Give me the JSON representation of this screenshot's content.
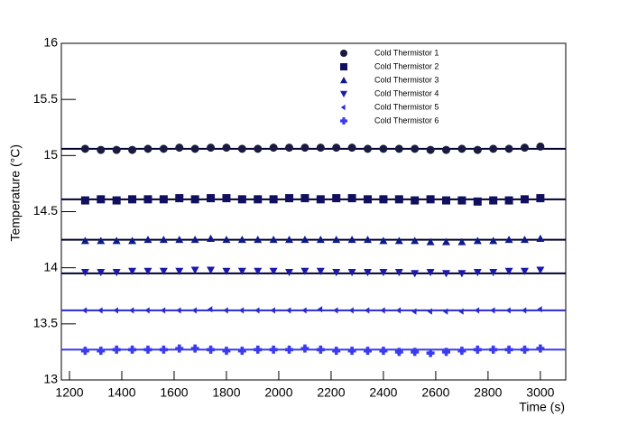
{
  "chart_data": {
    "type": "scatter",
    "x_label": "Time (s)",
    "y_label": "Temperature (°C)",
    "xlim": [
      1169,
      3097
    ],
    "ylim": [
      13,
      16
    ],
    "xticks": [
      1200,
      1400,
      1600,
      1800,
      2000,
      2200,
      2400,
      2600,
      2800,
      3000
    ],
    "yticks": [
      13,
      13.5,
      14,
      14.5,
      15,
      15.5,
      16
    ],
    "x": [
      1260,
      1320,
      1380,
      1440,
      1500,
      1560,
      1620,
      1680,
      1740,
      1800,
      1860,
      1920,
      1980,
      2040,
      2100,
      2160,
      2220,
      2280,
      2340,
      2400,
      2460,
      2520,
      2580,
      2640,
      2700,
      2760,
      2820,
      2880,
      2940,
      3000
    ],
    "series": [
      {
        "name": "Cold Thermistor 1",
        "color": "#1a1a40",
        "marker": "circle",
        "fit": 15.06,
        "values": [
          15.06,
          15.05,
          15.05,
          15.05,
          15.06,
          15.06,
          15.07,
          15.06,
          15.07,
          15.07,
          15.06,
          15.06,
          15.07,
          15.07,
          15.07,
          15.07,
          15.07,
          15.07,
          15.06,
          15.06,
          15.06,
          15.06,
          15.05,
          15.05,
          15.06,
          15.05,
          15.06,
          15.06,
          15.07,
          15.08
        ]
      },
      {
        "name": "Cold Thermistor 2",
        "color": "#101060",
        "marker": "square",
        "fit": 14.61,
        "values": [
          14.6,
          14.61,
          14.6,
          14.61,
          14.61,
          14.61,
          14.62,
          14.61,
          14.62,
          14.62,
          14.61,
          14.61,
          14.61,
          14.62,
          14.62,
          14.61,
          14.62,
          14.62,
          14.61,
          14.61,
          14.61,
          14.6,
          14.61,
          14.6,
          14.6,
          14.59,
          14.6,
          14.6,
          14.61,
          14.62
        ]
      },
      {
        "name": "Cold Thermistor 3",
        "color": "#0c1a8a",
        "marker": "triangle-up",
        "fit": 14.25,
        "values": [
          14.24,
          14.24,
          14.24,
          14.24,
          14.25,
          14.25,
          14.25,
          14.25,
          14.26,
          14.25,
          14.25,
          14.25,
          14.25,
          14.25,
          14.25,
          14.25,
          14.25,
          14.25,
          14.25,
          14.24,
          14.24,
          14.24,
          14.23,
          14.23,
          14.23,
          14.24,
          14.24,
          14.25,
          14.25,
          14.26
        ]
      },
      {
        "name": "Cold Thermistor 4",
        "color": "#1a1aaa",
        "marker": "triangle-down",
        "fit": 13.95,
        "values": [
          13.96,
          13.96,
          13.96,
          13.97,
          13.97,
          13.97,
          13.97,
          13.98,
          13.98,
          13.97,
          13.97,
          13.97,
          13.97,
          13.96,
          13.97,
          13.97,
          13.96,
          13.96,
          13.96,
          13.96,
          13.96,
          13.95,
          13.96,
          13.95,
          13.95,
          13.96,
          13.96,
          13.97,
          13.97,
          13.98
        ]
      },
      {
        "name": "Cold Thermistor 5",
        "color": "#2a2acc",
        "marker": "triangle-left",
        "fit": 13.62,
        "values": [
          13.62,
          13.62,
          13.62,
          13.62,
          13.62,
          13.62,
          13.62,
          13.62,
          13.63,
          13.62,
          13.62,
          13.62,
          13.62,
          13.62,
          13.62,
          13.63,
          13.62,
          13.62,
          13.62,
          13.62,
          13.62,
          13.61,
          13.61,
          13.61,
          13.61,
          13.62,
          13.62,
          13.62,
          13.62,
          13.63
        ]
      },
      {
        "name": "Cold Thermistor 6",
        "color": "#3a3aee",
        "marker": "cross",
        "fit": 13.27,
        "values": [
          13.26,
          13.26,
          13.27,
          13.27,
          13.27,
          13.27,
          13.28,
          13.28,
          13.27,
          13.26,
          13.26,
          13.27,
          13.27,
          13.27,
          13.28,
          13.27,
          13.26,
          13.26,
          13.26,
          13.26,
          13.25,
          13.25,
          13.24,
          13.25,
          13.26,
          13.27,
          13.27,
          13.27,
          13.27,
          13.28
        ]
      }
    ]
  }
}
